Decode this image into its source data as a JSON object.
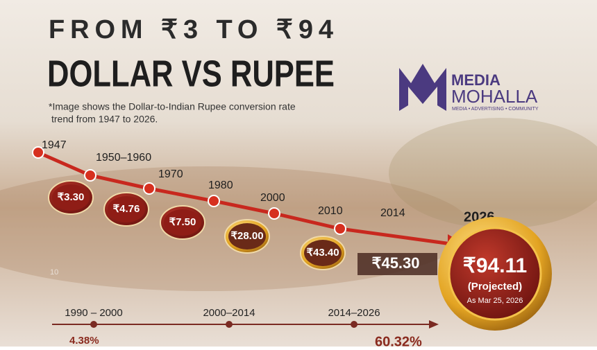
{
  "header": {
    "title_top": "FROM ₹3 TO ₹94",
    "title_main": "DOLLAR VS RUPEE",
    "note_lines": [
      "*Image shows the Dollar-to-Indian Rupee conversion rate",
      "trend from 1947 to 2026."
    ]
  },
  "logo": {
    "word1": "MEDIA",
    "word2": "MOHALLA",
    "tagline": "MEDIA • ADVERTISING • COMMUNITY"
  },
  "years": [
    "1947",
    "1950–1960",
    "1970",
    "1980",
    "2000",
    "2010",
    "2014",
    "2026"
  ],
  "coins": [
    "₹3.30",
    "₹4.76",
    "₹7.50",
    "₹28.00",
    "₹43.40"
  ],
  "banner": "₹45.30",
  "projection": {
    "value": "₹94.11",
    "label": "(Projected)",
    "date": "As Mar 25, 2026"
  },
  "faint_mark": "10",
  "timeline": {
    "periods": [
      "1990 – 2000",
      "2000–2014",
      "2014–2026"
    ],
    "changes": [
      "4.38%",
      "60.32%"
    ]
  }
}
